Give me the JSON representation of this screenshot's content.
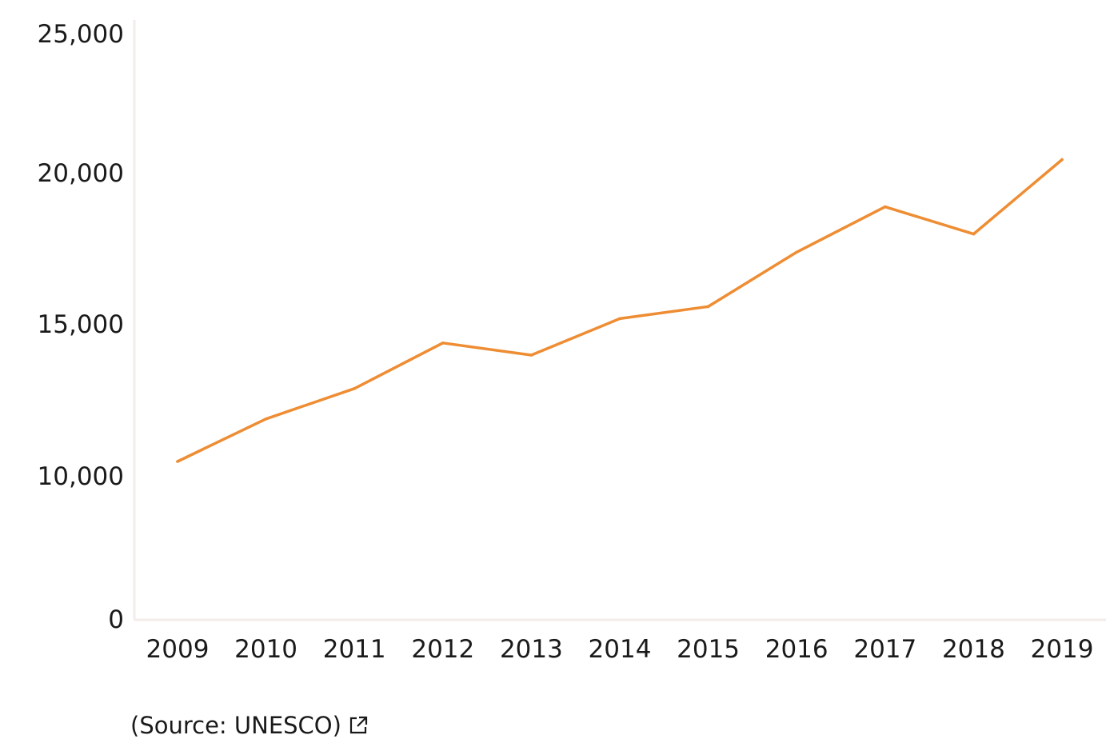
{
  "chart_data": {
    "type": "line",
    "x": [
      "2009",
      "2010",
      "2011",
      "2012",
      "2013",
      "2014",
      "2015",
      "2016",
      "2017",
      "2018",
      "2019"
    ],
    "series": [
      {
        "values": [
          10500,
          11900,
          12900,
          14400,
          14000,
          15200,
          15600,
          17400,
          18900,
          18000,
          20500
        ],
        "color": "#ee8d33"
      }
    ],
    "yticks": [
      "0",
      "10,000",
      "15,000",
      "20,000",
      "25,000"
    ],
    "ytick_values": [
      0,
      10000,
      15000,
      20000,
      25000
    ],
    "ylim": [
      0,
      25000
    ],
    "grid": false,
    "legend": "none",
    "axis_color": "#f3ecea"
  },
  "source": {
    "label": "(Source: UNESCO)",
    "icon": "external-link-icon"
  }
}
